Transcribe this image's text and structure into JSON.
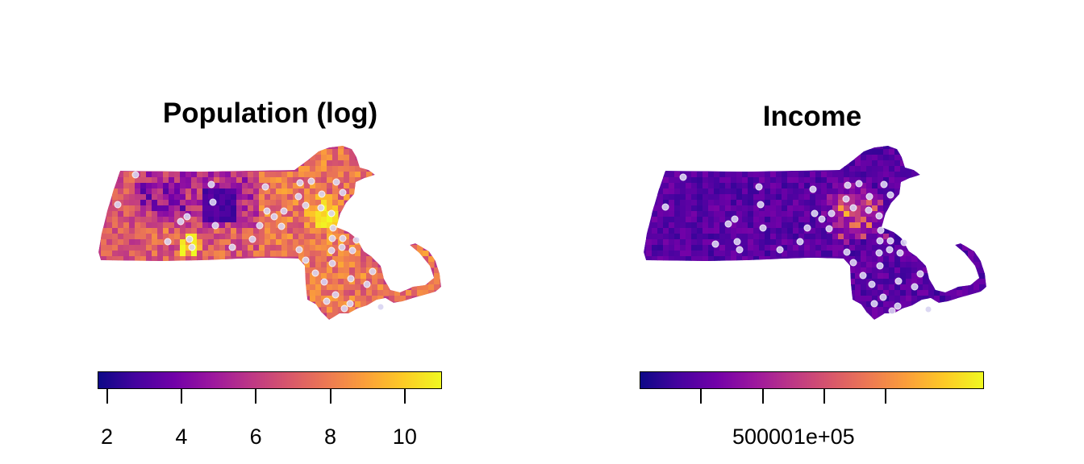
{
  "maps": [
    {
      "title": "Population (log)",
      "legend": {
        "tick_labels": [
          "2",
          "4",
          "6",
          "8",
          "10"
        ],
        "tick_values": [
          2,
          4,
          6,
          8,
          10
        ],
        "range": [
          1.75,
          11
        ],
        "colormap": "plasma"
      },
      "fill_scheme": "population"
    },
    {
      "title": "Income",
      "legend": {
        "tick_labels": [
          "",
          "50000",
          "1e+05",
          ""
        ],
        "tick_values": [
          0,
          50000,
          100000,
          150000
        ],
        "range": [
          -50000,
          230000
        ],
        "colormap": "plasma"
      },
      "fill_scheme": "income"
    }
  ],
  "colors": {
    "plasma": [
      "#0d0887",
      "#46039f",
      "#7201a8",
      "#9c179e",
      "#bd3786",
      "#d8576b",
      "#ed7953",
      "#fb9f3a",
      "#fdca26",
      "#f0f921"
    ],
    "point_fill": "#d9d4f2",
    "point_stroke": "#ffffff"
  }
}
